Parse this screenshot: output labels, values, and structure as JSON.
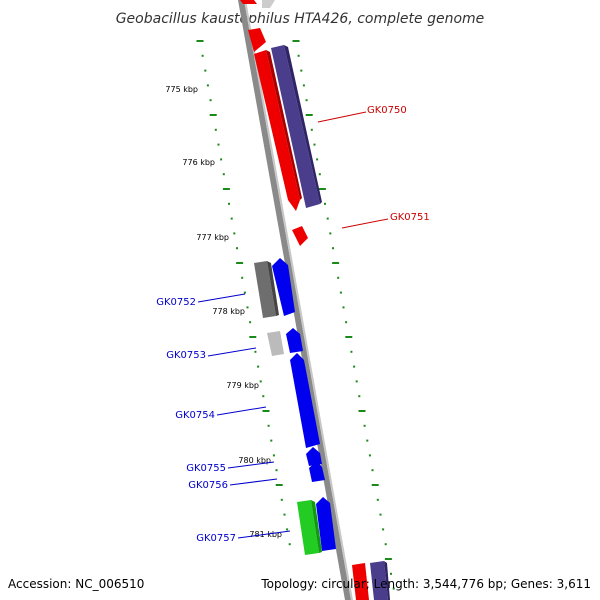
{
  "title": "Geobacillus kaustophilus HTA426, complete genome",
  "footer": {
    "accession": "Accession: NC_006510",
    "topology": "Topology: circular; Length: 3,544,776 bp; Genes: 3,611"
  },
  "tick_labels": [
    "775 kbp",
    "776 kbp",
    "777 kbp",
    "778 kbp",
    "779 kbp",
    "780 kbp",
    "781 kbp"
  ],
  "gene_labels": [
    {
      "name": "GK0750",
      "color": "#cc0000"
    },
    {
      "name": "GK0751",
      "color": "#cc0000"
    },
    {
      "name": "GK0752",
      "color": "#0000cc"
    },
    {
      "name": "GK0753",
      "color": "#0000cc"
    },
    {
      "name": "GK0754",
      "color": "#0000cc"
    },
    {
      "name": "GK0755",
      "color": "#0000cc"
    },
    {
      "name": "GK0756",
      "color": "#0000cc"
    },
    {
      "name": "GK0757",
      "color": "#0000cc"
    }
  ],
  "colors": {
    "backbone": "#8a8a8a",
    "forward_cds": "#0000ee",
    "reverse_cds": "#ee0000",
    "gray_feature": "#6e6e6e",
    "light_gray_feature": "#bbbbbb",
    "purple_feature": "#4a3d8c",
    "green_feature": "#22cc22",
    "tick_marks": "#1a8a1a"
  }
}
